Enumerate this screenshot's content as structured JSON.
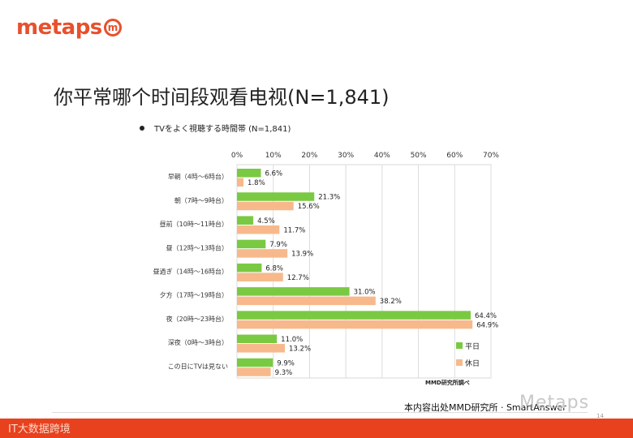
{
  "logo": {
    "text": "metaps",
    "mark": "m"
  },
  "slide_title": "你平常哪个时间段观看电视(N=1,841)",
  "chart_heading": "TVをよく視聴する時間帯 (N=1,841)",
  "source_note": "本内容出处MMD研究所 · SmartAnswer",
  "watermark": "Metaps",
  "page_number": "14",
  "footer_text": "IT大数据跨境",
  "colors": {
    "weekday": "#7ac943",
    "holiday": "#f7b98b",
    "brand": "#e8411d"
  },
  "chart_data": {
    "type": "bar",
    "orientation": "horizontal",
    "title": "TVをよく視聴する時間帯 (N=1,841)",
    "categories": [
      "早朝（4時～6時台）",
      "朝（7時～9時台）",
      "昼前（10時～11時台）",
      "昼（12時～13時台）",
      "昼過ぎ（14時～16時台）",
      "夕方（17時～19時台）",
      "夜（20時～23時台）",
      "深夜（0時～3時台）",
      "この日にTVは見ない"
    ],
    "series": [
      {
        "name": "平日",
        "values": [
          6.6,
          21.3,
          4.5,
          7.9,
          6.8,
          31.0,
          64.4,
          11.0,
          9.9
        ],
        "labels": [
          "6.6%",
          "21.3%",
          "4.5%",
          "7.9%",
          "6.8%",
          "31.0%",
          "64.4%",
          "11.0%",
          "9.9%"
        ]
      },
      {
        "name": "休日",
        "values": [
          1.8,
          15.6,
          11.7,
          13.9,
          12.7,
          38.2,
          64.9,
          13.2,
          9.3
        ],
        "labels": [
          "1.8%",
          "15.6%",
          "11.7%",
          "13.9%",
          "12.7%",
          "38.2%",
          "64.9%",
          "13.2%",
          "9.3%"
        ]
      }
    ],
    "xlim": [
      0,
      70
    ],
    "xticks": [
      "0%",
      "10%",
      "20%",
      "30%",
      "40%",
      "50%",
      "60%",
      "70%"
    ],
    "grid": true,
    "legend": "bottom-right",
    "source": "MMD研究所調べ"
  }
}
